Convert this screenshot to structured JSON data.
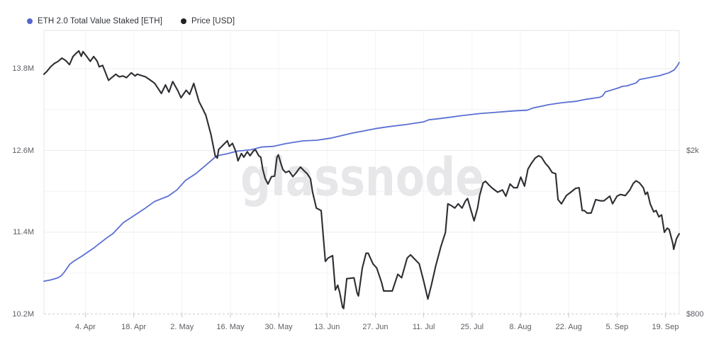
{
  "legend": {
    "items": [
      {
        "label": "ETH 2.0 Total Value Staked [ETH]",
        "color": "#5565cd"
      },
      {
        "label": "Price [USD]",
        "color": "#212126"
      }
    ]
  },
  "watermark": "glassnode",
  "colors": {
    "staked_line": "#5a6fd3",
    "price_line": "#2e2e33",
    "grid_major": "#ececf0",
    "grid_minor": "#f4f4f7",
    "plot_border": "#e4e4e9",
    "axis_line": "#cfcfd6",
    "tick_mark": "#c9c9d0",
    "axis_text": "#5c5e64",
    "watermark_text": "#e7e7ea"
  },
  "chart_data": {
    "type": "line",
    "title": "",
    "x_unit": "days (day 0 = 23 Mar, day 184 = 23 Sep)",
    "x_domain": [
      0,
      184
    ],
    "x_ticks": [
      {
        "day": 12,
        "label": "4. Apr"
      },
      {
        "day": 26,
        "label": "18. Apr"
      },
      {
        "day": 40,
        "label": "2. May"
      },
      {
        "day": 54,
        "label": "16. May"
      },
      {
        "day": 68,
        "label": "30. May"
      },
      {
        "day": 82,
        "label": "13. Jun"
      },
      {
        "day": 96,
        "label": "27. Jun"
      },
      {
        "day": 110,
        "label": "11. Jul"
      },
      {
        "day": 124,
        "label": "25. Jul"
      },
      {
        "day": 138,
        "label": "8. Aug"
      },
      {
        "day": 152,
        "label": "22. Aug"
      },
      {
        "day": 166,
        "label": "5. Sep"
      },
      {
        "day": 180,
        "label": "19. Sep"
      }
    ],
    "left_axis": {
      "unit": "ETH (millions)",
      "scale": "linear",
      "ticks": [
        {
          "value": 13.8,
          "label": "13.8M"
        },
        {
          "value": 12.6,
          "label": "12.6M"
        },
        {
          "value": 11.4,
          "label": "11.4M"
        },
        {
          "value": 10.2,
          "label": "10.2M"
        }
      ],
      "minor_gridlines": [
        13.2,
        12.0,
        10.8
      ]
    },
    "right_axis": {
      "unit": "USD",
      "scale": "log",
      "ticks": [
        {
          "value": 2000,
          "label": "$2k"
        },
        {
          "value": 800,
          "label": "$800"
        }
      ]
    },
    "series": [
      {
        "name": "ETH 2.0 Total Value Staked [ETH]",
        "axis": "left",
        "unit": "million ETH",
        "points": [
          [
            0,
            10.68
          ],
          [
            2,
            10.7
          ],
          [
            4,
            10.73
          ],
          [
            5,
            10.76
          ],
          [
            6,
            10.82
          ],
          [
            6.5,
            10.86
          ],
          [
            7.5,
            10.93
          ],
          [
            8.5,
            10.97
          ],
          [
            11,
            11.05
          ],
          [
            14.5,
            11.17
          ],
          [
            18,
            11.31
          ],
          [
            20,
            11.38
          ],
          [
            23,
            11.54
          ],
          [
            26,
            11.64
          ],
          [
            29,
            11.74
          ],
          [
            32,
            11.85
          ],
          [
            36,
            11.93
          ],
          [
            38.5,
            12.02
          ],
          [
            41,
            12.16
          ],
          [
            44,
            12.26
          ],
          [
            47.5,
            12.41
          ],
          [
            50,
            12.52
          ],
          [
            53,
            12.55
          ],
          [
            56,
            12.59
          ],
          [
            60,
            12.61
          ],
          [
            63,
            12.65
          ],
          [
            66.5,
            12.66
          ],
          [
            70,
            12.7
          ],
          [
            75,
            12.74
          ],
          [
            79,
            12.75
          ],
          [
            83,
            12.78
          ],
          [
            89,
            12.85
          ],
          [
            96,
            12.92
          ],
          [
            100,
            12.95
          ],
          [
            105,
            12.98
          ],
          [
            110,
            13.02
          ],
          [
            111.5,
            13.05
          ],
          [
            115,
            13.07
          ],
          [
            121,
            13.11
          ],
          [
            126,
            13.14
          ],
          [
            131,
            13.16
          ],
          [
            136,
            13.18
          ],
          [
            140,
            13.19
          ],
          [
            141.5,
            13.22
          ],
          [
            146,
            13.27
          ],
          [
            150,
            13.3
          ],
          [
            154,
            13.32
          ],
          [
            157,
            13.35
          ],
          [
            161,
            13.38
          ],
          [
            161.8,
            13.4
          ],
          [
            162.6,
            13.46
          ],
          [
            164,
            13.48
          ],
          [
            166.5,
            13.52
          ],
          [
            167.5,
            13.54
          ],
          [
            169,
            13.55
          ],
          [
            171.5,
            13.59
          ],
          [
            172.5,
            13.64
          ],
          [
            175.5,
            13.67
          ],
          [
            178.5,
            13.7
          ],
          [
            181,
            13.74
          ],
          [
            182.5,
            13.78
          ],
          [
            183.3,
            13.83
          ],
          [
            184,
            13.89
          ]
        ]
      },
      {
        "name": "Price [USD]",
        "axis": "right",
        "unit": "USD",
        "points": [
          [
            0,
            3075
          ],
          [
            0.8,
            3120
          ],
          [
            2,
            3210
          ],
          [
            3,
            3265
          ],
          [
            4,
            3300
          ],
          [
            5.2,
            3365
          ],
          [
            6.3,
            3320
          ],
          [
            7.4,
            3245
          ],
          [
            8.4,
            3395
          ],
          [
            9.5,
            3470
          ],
          [
            10.1,
            3505
          ],
          [
            10.8,
            3400
          ],
          [
            11.3,
            3490
          ],
          [
            12.4,
            3395
          ],
          [
            13.4,
            3305
          ],
          [
            14.4,
            3395
          ],
          [
            15.4,
            3310
          ],
          [
            16,
            3205
          ],
          [
            17,
            3230
          ],
          [
            18.7,
            2970
          ],
          [
            20.8,
            3075
          ],
          [
            21.8,
            3030
          ],
          [
            22.9,
            3045
          ],
          [
            23.9,
            3015
          ],
          [
            25.3,
            3100
          ],
          [
            26.4,
            3045
          ],
          [
            27,
            3075
          ],
          [
            29.4,
            3030
          ],
          [
            30.9,
            2970
          ],
          [
            32.1,
            2920
          ],
          [
            34,
            2760
          ],
          [
            35.2,
            2895
          ],
          [
            36.2,
            2780
          ],
          [
            37.3,
            2950
          ],
          [
            38.7,
            2810
          ],
          [
            39.7,
            2695
          ],
          [
            41.2,
            2810
          ],
          [
            42.2,
            2745
          ],
          [
            43.4,
            2920
          ],
          [
            44.9,
            2640
          ],
          [
            46.3,
            2500
          ],
          [
            46.9,
            2440
          ],
          [
            48.4,
            2185
          ],
          [
            49.6,
            1945
          ],
          [
            50.2,
            1920
          ],
          [
            50.6,
            2015
          ],
          [
            51.5,
            2050
          ],
          [
            53.1,
            2115
          ],
          [
            53.7,
            2050
          ],
          [
            54.6,
            2085
          ],
          [
            55.6,
            1990
          ],
          [
            56.2,
            1890
          ],
          [
            57.2,
            1970
          ],
          [
            57.9,
            1930
          ],
          [
            58.9,
            1990
          ],
          [
            59.7,
            1945
          ],
          [
            60.7,
            2000
          ],
          [
            61.3,
            2010
          ],
          [
            62.2,
            1945
          ],
          [
            62.8,
            1930
          ],
          [
            63.4,
            1800
          ],
          [
            64.1,
            1710
          ],
          [
            64.9,
            1660
          ],
          [
            65.9,
            1730
          ],
          [
            66.8,
            1735
          ],
          [
            67.5,
            1930
          ],
          [
            67.9,
            1955
          ],
          [
            68.6,
            1865
          ],
          [
            69.2,
            1800
          ],
          [
            70,
            1770
          ],
          [
            71,
            1785
          ],
          [
            72.1,
            1730
          ],
          [
            73.1,
            1770
          ],
          [
            73.7,
            1800
          ],
          [
            74.3,
            1825
          ],
          [
            75.4,
            1785
          ],
          [
            76.2,
            1760
          ],
          [
            77.2,
            1710
          ],
          [
            77.8,
            1585
          ],
          [
            78.9,
            1450
          ],
          [
            80.3,
            1430
          ],
          [
            81.5,
            1075
          ],
          [
            82.3,
            1095
          ],
          [
            83.6,
            1110
          ],
          [
            84.4,
            915
          ],
          [
            85.1,
            940
          ],
          [
            85.7,
            900
          ],
          [
            86.5,
            830
          ],
          [
            86.8,
            825
          ],
          [
            87.7,
            975
          ],
          [
            89.8,
            980
          ],
          [
            90.7,
            900
          ],
          [
            91.1,
            885
          ],
          [
            92.2,
            1035
          ],
          [
            93.3,
            1125
          ],
          [
            93.9,
            1125
          ],
          [
            95.3,
            1060
          ],
          [
            96.4,
            1035
          ],
          [
            97.8,
            955
          ],
          [
            98.4,
            910
          ],
          [
            100.9,
            910
          ],
          [
            102.5,
            1000
          ],
          [
            103.6,
            980
          ],
          [
            105.2,
            1095
          ],
          [
            106.2,
            1115
          ],
          [
            108.7,
            1060
          ],
          [
            110,
            960
          ],
          [
            111.2,
            870
          ],
          [
            112.2,
            940
          ],
          [
            113.5,
            1050
          ],
          [
            115,
            1170
          ],
          [
            116.3,
            1265
          ],
          [
            117,
            1485
          ],
          [
            118,
            1470
          ],
          [
            119,
            1450
          ],
          [
            120,
            1485
          ],
          [
            121.1,
            1450
          ],
          [
            122.1,
            1510
          ],
          [
            122.7,
            1530
          ],
          [
            123.7,
            1430
          ],
          [
            124.6,
            1350
          ],
          [
            125.6,
            1450
          ],
          [
            126.2,
            1555
          ],
          [
            127.2,
            1670
          ],
          [
            127.9,
            1685
          ],
          [
            128.9,
            1650
          ],
          [
            129.9,
            1620
          ],
          [
            131.4,
            1585
          ],
          [
            132.8,
            1605
          ],
          [
            133.8,
            1550
          ],
          [
            135,
            1660
          ],
          [
            136.1,
            1625
          ],
          [
            137.1,
            1625
          ],
          [
            138.1,
            1725
          ],
          [
            139.2,
            1640
          ],
          [
            140.2,
            1805
          ],
          [
            141.2,
            1865
          ],
          [
            142.3,
            1920
          ],
          [
            143.3,
            1945
          ],
          [
            144.1,
            1930
          ],
          [
            145.2,
            1865
          ],
          [
            146.2,
            1825
          ],
          [
            147.2,
            1770
          ],
          [
            148.2,
            1760
          ],
          [
            148.9,
            1520
          ],
          [
            149.9,
            1485
          ],
          [
            151.3,
            1555
          ],
          [
            152.6,
            1585
          ],
          [
            154,
            1620
          ],
          [
            155,
            1625
          ],
          [
            155.9,
            1430
          ],
          [
            156.5,
            1430
          ],
          [
            157.3,
            1410
          ],
          [
            158.5,
            1410
          ],
          [
            159.8,
            1520
          ],
          [
            161.2,
            1510
          ],
          [
            162.2,
            1510
          ],
          [
            163.9,
            1550
          ],
          [
            164.7,
            1485
          ],
          [
            166,
            1550
          ],
          [
            167,
            1565
          ],
          [
            168.4,
            1555
          ],
          [
            169.7,
            1605
          ],
          [
            170.7,
            1665
          ],
          [
            171.5,
            1690
          ],
          [
            172.5,
            1670
          ],
          [
            173.6,
            1625
          ],
          [
            174.2,
            1565
          ],
          [
            174.8,
            1585
          ],
          [
            175.6,
            1485
          ],
          [
            176.6,
            1420
          ],
          [
            177.3,
            1430
          ],
          [
            178.1,
            1380
          ],
          [
            178.9,
            1395
          ],
          [
            179.7,
            1265
          ],
          [
            180.5,
            1295
          ],
          [
            181.1,
            1285
          ],
          [
            182.2,
            1185
          ],
          [
            182.4,
            1150
          ],
          [
            183.2,
            1220
          ],
          [
            184,
            1255
          ]
        ]
      }
    ],
    "legend_position": "top-left",
    "grid": true
  }
}
